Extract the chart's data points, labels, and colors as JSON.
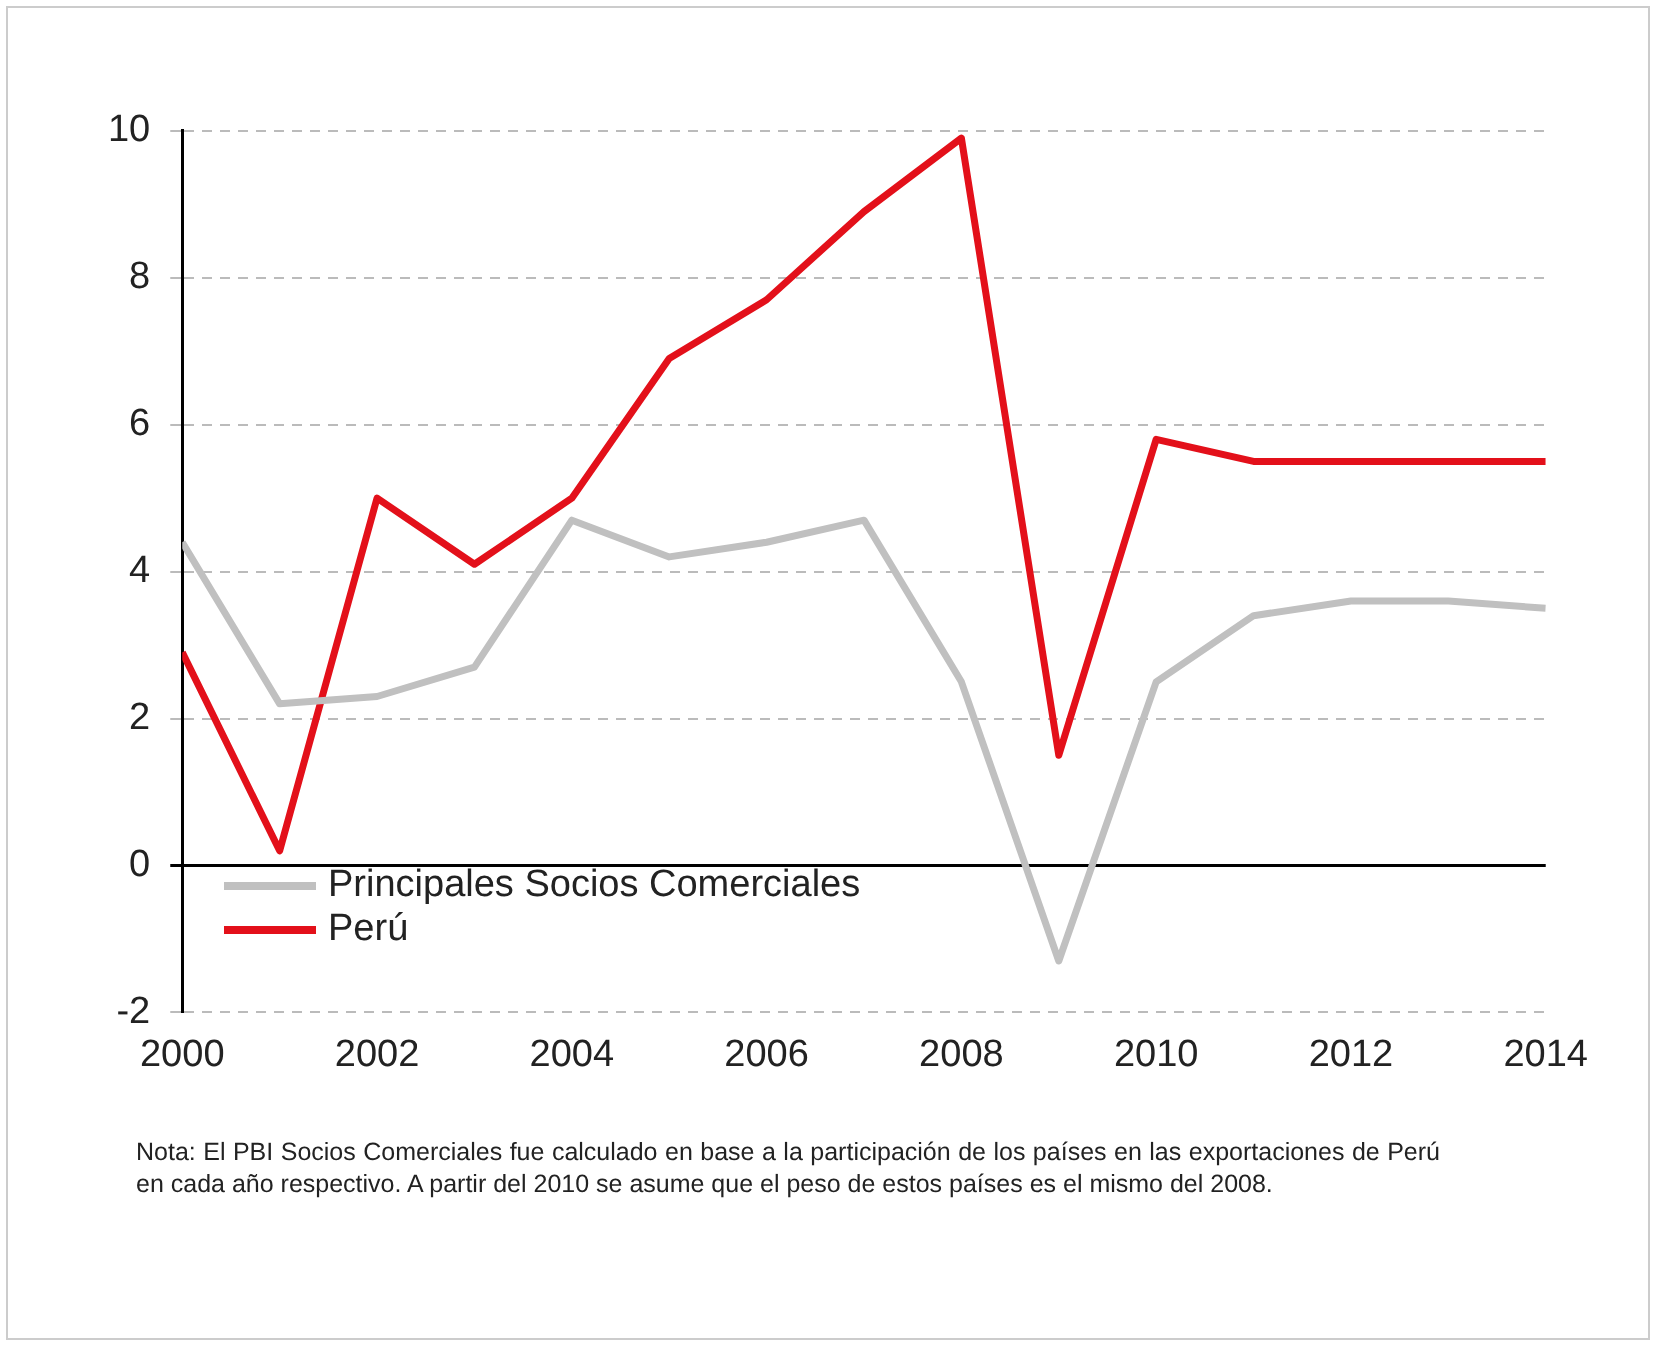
{
  "chart_data": {
    "type": "line",
    "x": [
      2000,
      2001,
      2002,
      2003,
      2004,
      2005,
      2006,
      2007,
      2008,
      2009,
      2010,
      2011,
      2012,
      2013,
      2014
    ],
    "series": [
      {
        "name": "Principales Socios Comerciales",
        "color": "#c0c0c0",
        "values": [
          4.4,
          2.2,
          2.3,
          2.7,
          4.7,
          4.2,
          4.4,
          4.7,
          2.5,
          -1.3,
          2.5,
          3.4,
          3.6,
          3.6,
          3.5
        ]
      },
      {
        "name": "Perú",
        "color": "#e3101a",
        "values": [
          2.9,
          0.2,
          5.0,
          4.1,
          5.0,
          6.9,
          7.7,
          8.9,
          9.9,
          1.5,
          5.8,
          5.5,
          5.5,
          5.5,
          5.5
        ]
      }
    ],
    "xlim": [
      2000,
      2014
    ],
    "xticks": [
      2000,
      2002,
      2004,
      2006,
      2008,
      2010,
      2012,
      2014
    ],
    "ylim": [
      -2,
      10
    ],
    "yticks": [
      -2,
      0,
      2,
      4,
      6,
      8,
      10
    ],
    "grid": "y",
    "legend": "bottom left",
    "marker": "none",
    "line_style": "solid",
    "annotations": [
      "Nota: El PBI Socios Comerciales fue calculado en base a la participación de los países en las exportaciones de Perú en cada año respectivo. A partir del 2010 se asume que el  peso de estos países es el mismo del 2008."
    ]
  }
}
